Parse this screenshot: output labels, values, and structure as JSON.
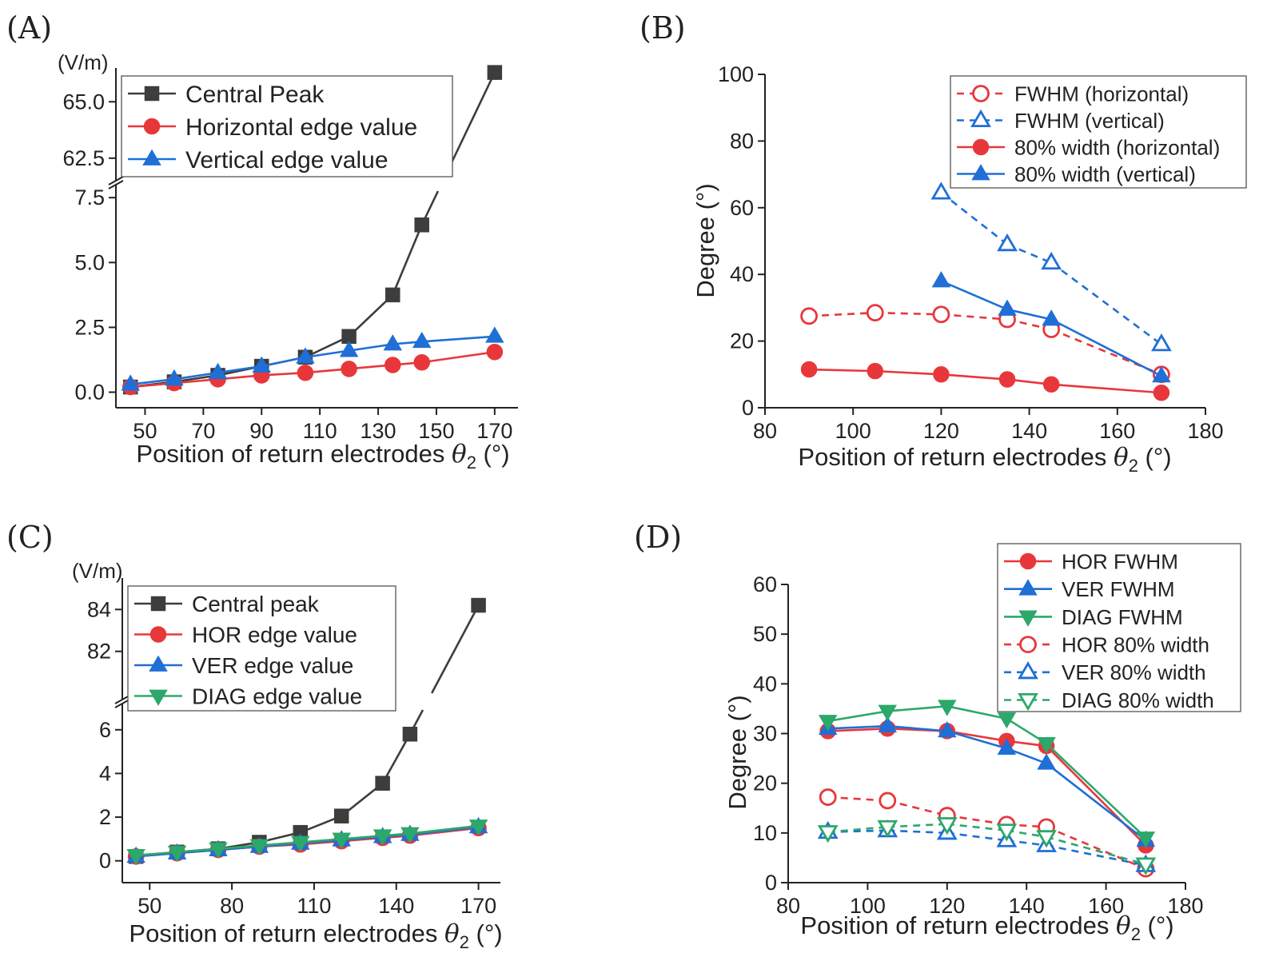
{
  "colors": {
    "black": "#3d3d3d",
    "red": "#e8373b",
    "blue": "#1f6fd6",
    "green": "#2ca86a"
  },
  "xlabel_main": "Position of return electrodes ",
  "xlabel_theta": "θ",
  "xlabel_sub": "2",
  "xlabel_unit": " (°)",
  "chart_data": [
    {
      "panel": "(A)",
      "type": "line",
      "ylabel": "(V/m)",
      "ylabel_orientation": "horizontal",
      "xlim": [
        40,
        178
      ],
      "xticks": [
        50,
        70,
        90,
        110,
        130,
        150,
        170
      ],
      "broken_axis": true,
      "ylim_lower": [
        -0.6,
        8.0
      ],
      "ylim_upper": [
        61.5,
        66.5
      ],
      "yticks_lower": [
        "0.0",
        "2.5",
        "5.0",
        "7.5"
      ],
      "yticks_upper": [
        "62.5",
        "65.0"
      ],
      "legend": "top-left",
      "series": [
        {
          "name": "Central Peak",
          "color": "black",
          "marker": "square",
          "filled": true,
          "dashed": false,
          "x": [
            45,
            60,
            75,
            90,
            105,
            120,
            135,
            145,
            170
          ],
          "y": [
            0.2,
            0.4,
            0.65,
            1.0,
            1.35,
            2.15,
            3.75,
            6.45,
            66.3
          ]
        },
        {
          "name": "Horizontal edge value",
          "color": "red",
          "marker": "circle",
          "filled": true,
          "dashed": false,
          "x": [
            45,
            60,
            75,
            90,
            105,
            120,
            135,
            145,
            170
          ],
          "y": [
            0.2,
            0.35,
            0.5,
            0.65,
            0.75,
            0.9,
            1.05,
            1.15,
            1.55
          ]
        },
        {
          "name": "Vertical edge value",
          "color": "blue",
          "marker": "triangle-up",
          "filled": true,
          "dashed": false,
          "x": [
            45,
            60,
            75,
            90,
            105,
            120,
            135,
            145,
            170
          ],
          "y": [
            0.3,
            0.5,
            0.75,
            1.0,
            1.35,
            1.6,
            1.85,
            1.95,
            2.15
          ]
        }
      ]
    },
    {
      "panel": "(B)",
      "type": "line",
      "ylabel": "Degree (°)",
      "ylabel_orientation": "vertical",
      "xlim": [
        80,
        180
      ],
      "xticks": [
        80,
        100,
        120,
        140,
        160,
        180
      ],
      "ylim": [
        0,
        100
      ],
      "yticks": [
        0,
        20,
        40,
        60,
        80,
        100
      ],
      "legend": "top-right",
      "series": [
        {
          "name": "FWHM (horizontal)",
          "color": "red",
          "marker": "circle",
          "filled": false,
          "dashed": true,
          "x": [
            90,
            105,
            120,
            135,
            145,
            170
          ],
          "y": [
            27.5,
            28.5,
            28.0,
            26.5,
            23.5,
            10.0
          ]
        },
        {
          "name": "FWHM (vertical)",
          "color": "blue",
          "marker": "triangle-up",
          "filled": false,
          "dashed": true,
          "x": [
            120,
            135,
            145,
            170
          ],
          "y": [
            64.5,
            49.0,
            43.5,
            19.0
          ]
        },
        {
          "name": "80% width (horizontal)",
          "color": "red",
          "marker": "circle",
          "filled": true,
          "dashed": false,
          "x": [
            90,
            105,
            120,
            135,
            145,
            170
          ],
          "y": [
            11.5,
            11.0,
            10.0,
            8.5,
            7.0,
            4.5
          ]
        },
        {
          "name": "80% width (vertical)",
          "color": "blue",
          "marker": "triangle-up",
          "filled": true,
          "dashed": false,
          "x": [
            120,
            135,
            145,
            170
          ],
          "y": [
            38.0,
            29.5,
            26.5,
            9.5
          ]
        }
      ]
    },
    {
      "panel": "(C)",
      "type": "line",
      "ylabel": "(V/m)",
      "ylabel_orientation": "horizontal",
      "xlim": [
        40,
        178
      ],
      "xticks": [
        50,
        80,
        110,
        140,
        170
      ],
      "broken_axis": true,
      "ylim_lower": [
        -1.0,
        7.2
      ],
      "ylim_upper": [
        79.7,
        85.5
      ],
      "yticks_lower": [
        "0",
        "2",
        "4",
        "6"
      ],
      "yticks_upper": [
        "82",
        "84"
      ],
      "legend": "top-left",
      "series": [
        {
          "name": "Central peak",
          "color": "black",
          "marker": "square",
          "filled": true,
          "dashed": false,
          "x": [
            45,
            60,
            75,
            90,
            105,
            120,
            135,
            145,
            170
          ],
          "y": [
            0.2,
            0.4,
            0.55,
            0.85,
            1.3,
            2.05,
            3.55,
            5.8,
            84.2
          ]
        },
        {
          "name": "HOR edge value",
          "color": "red",
          "marker": "circle",
          "filled": true,
          "dashed": false,
          "x": [
            45,
            60,
            75,
            90,
            105,
            120,
            135,
            145,
            170
          ],
          "y": [
            0.2,
            0.35,
            0.5,
            0.65,
            0.75,
            0.9,
            1.05,
            1.15,
            1.5
          ]
        },
        {
          "name": "VER edge value",
          "color": "blue",
          "marker": "triangle-up",
          "filled": true,
          "dashed": false,
          "x": [
            45,
            60,
            75,
            90,
            105,
            120,
            135,
            145,
            170
          ],
          "y": [
            0.2,
            0.35,
            0.5,
            0.65,
            0.8,
            0.95,
            1.1,
            1.2,
            1.55
          ]
        },
        {
          "name": "DIAG edge value",
          "color": "green",
          "marker": "triangle-down",
          "filled": true,
          "dashed": false,
          "x": [
            45,
            60,
            75,
            90,
            105,
            120,
            135,
            145,
            170
          ],
          "y": [
            0.25,
            0.4,
            0.55,
            0.7,
            0.85,
            1.0,
            1.15,
            1.25,
            1.6
          ]
        }
      ]
    },
    {
      "panel": "(D)",
      "type": "line",
      "ylabel": "Degree (°)",
      "ylabel_orientation": "vertical",
      "xlim": [
        80,
        180
      ],
      "xticks": [
        80,
        100,
        120,
        140,
        160,
        180
      ],
      "ylim": [
        0,
        60
      ],
      "yticks": [
        0,
        10,
        20,
        30,
        40,
        50,
        60
      ],
      "legend": "top-right",
      "series": [
        {
          "name": "HOR FWHM",
          "color": "red",
          "marker": "circle",
          "filled": true,
          "dashed": false,
          "x": [
            90,
            105,
            120,
            135,
            145,
            170
          ],
          "y": [
            30.5,
            31.0,
            30.5,
            28.5,
            27.5,
            7.5
          ]
        },
        {
          "name": "VER FWHM",
          "color": "blue",
          "marker": "triangle-up",
          "filled": true,
          "dashed": false,
          "x": [
            90,
            105,
            120,
            135,
            145,
            170
          ],
          "y": [
            31.0,
            31.5,
            30.5,
            27.0,
            24.0,
            8.5
          ]
        },
        {
          "name": "DIAG FWHM",
          "color": "green",
          "marker": "triangle-down",
          "filled": true,
          "dashed": false,
          "x": [
            90,
            105,
            120,
            135,
            145,
            170
          ],
          "y": [
            32.5,
            34.5,
            35.5,
            33.0,
            28.0,
            9.0
          ]
        },
        {
          "name": "HOR 80% width",
          "color": "red",
          "marker": "circle",
          "filled": false,
          "dashed": true,
          "x": [
            90,
            105,
            120,
            135,
            145,
            170
          ],
          "y": [
            17.2,
            16.5,
            13.5,
            11.7,
            11.2,
            2.8
          ]
        },
        {
          "name": "VER 80% width",
          "color": "blue",
          "marker": "triangle-up",
          "filled": false,
          "dashed": true,
          "x": [
            90,
            105,
            120,
            135,
            145,
            170
          ],
          "y": [
            10.2,
            10.5,
            10.0,
            8.5,
            7.5,
            3.5
          ]
        },
        {
          "name": "DIAG 80% width",
          "color": "green",
          "marker": "triangle-down",
          "filled": false,
          "dashed": true,
          "x": [
            90,
            105,
            120,
            135,
            145,
            170
          ],
          "y": [
            10.2,
            11.2,
            11.8,
            10.5,
            9.2,
            3.7
          ]
        }
      ]
    }
  ]
}
